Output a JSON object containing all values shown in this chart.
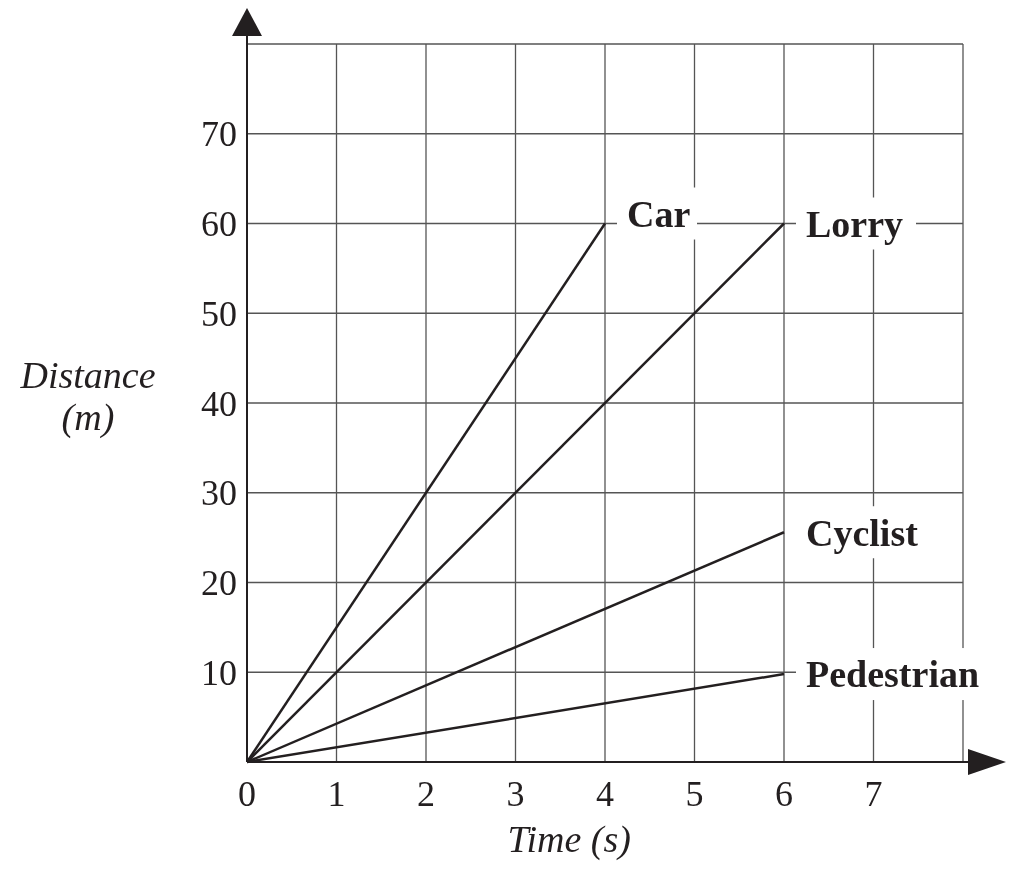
{
  "chart_data": {
    "type": "line",
    "xlabel": "Time (s)",
    "ylabel": "Distance (m)",
    "xlim": [
      0,
      8
    ],
    "ylim": [
      0,
      80
    ],
    "xticks": [
      0,
      1,
      2,
      3,
      4,
      5,
      6,
      7
    ],
    "yticks": [
      10,
      20,
      30,
      40,
      50,
      60,
      70
    ],
    "grid": true,
    "marker": "none",
    "line_style": "solid",
    "series": [
      {
        "name": "Car",
        "color": "#231f20",
        "x": [
          0,
          4
        ],
        "values": [
          0,
          60
        ]
      },
      {
        "name": "Lorry",
        "color": "#231f20",
        "x": [
          0,
          6
        ],
        "values": [
          0,
          60
        ]
      },
      {
        "name": "Cyclist",
        "color": "#231f20",
        "x": [
          0,
          6
        ],
        "values": [
          0,
          25.6
        ]
      },
      {
        "name": "Pedestrian",
        "color": "#231f20",
        "x": [
          0,
          6
        ],
        "values": [
          0,
          9.8
        ]
      }
    ]
  }
}
